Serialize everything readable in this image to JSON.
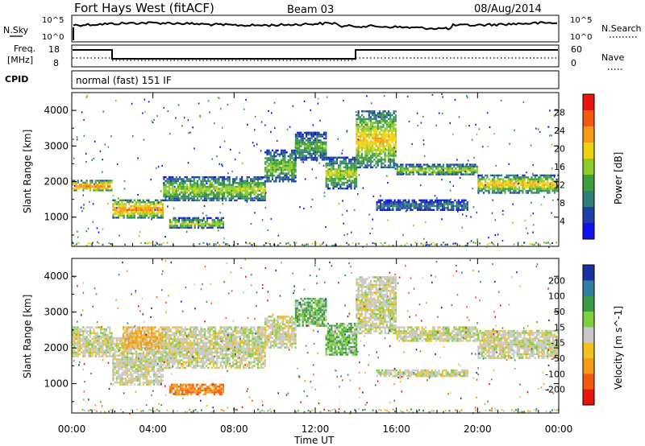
{
  "header": {
    "site": "Fort Hays West (fitACF)",
    "beam": "Beam 03",
    "date": "08/Aug/2014"
  },
  "strips": {
    "nsky_label": "N.Sky",
    "nsky_ticks": [
      "10^5",
      "10^0"
    ],
    "nsearch_label": "N.Search",
    "nsearch_ticks": [
      "10^5",
      "10^0"
    ],
    "freq_label": "Freq.",
    "freq_unit": "[MHz]",
    "freq_ticks": [
      "18",
      "8"
    ],
    "nave_label": "Nave",
    "nave_ticks": [
      "60",
      "0"
    ],
    "cpid_label": "CPID",
    "cpid_text": "normal (fast) 151 IF"
  },
  "chart_data": [
    {
      "type": "heatmap",
      "name": "power",
      "ylabel": "Slant Range [km]",
      "xlabel": "Time UT",
      "xlim_hours": [
        0,
        24
      ],
      "ylim": [
        180,
        4500
      ],
      "yticks": [
        "1000",
        "2000",
        "3000",
        "4000"
      ],
      "xticks": [
        "00:00",
        "04:00",
        "08:00",
        "12:00",
        "16:00",
        "20:00",
        "00:00"
      ],
      "colorbar": {
        "label": "Power [dB]",
        "ticks": [
          "28",
          "24",
          "20",
          "16",
          "12",
          "8",
          "4"
        ],
        "colors": [
          "#e8140e",
          "#f35a0f",
          "#f79a1a",
          "#efd20f",
          "#8ccc2a",
          "#3e9e3e",
          "#2f7f76",
          "#1f3fa8",
          "#1010f0"
        ]
      },
      "bands": [
        {
          "h": [
            0.0,
            2.0
          ],
          "r": [
            1750,
            2050
          ],
          "level": 22
        },
        {
          "h": [
            2.0,
            4.5
          ],
          "r": [
            1000,
            1500
          ],
          "level": 22
        },
        {
          "h": [
            4.5,
            9.5
          ],
          "r": [
            1450,
            2150
          ],
          "level": 14
        },
        {
          "h": [
            9.5,
            11.0
          ],
          "r": [
            2000,
            2900
          ],
          "level": 12
        },
        {
          "h": [
            11.0,
            12.5
          ],
          "r": [
            2600,
            3400
          ],
          "level": 11
        },
        {
          "h": [
            12.5,
            14.0
          ],
          "r": [
            1800,
            2700
          ],
          "level": 14
        },
        {
          "h": [
            14.0,
            16.0
          ],
          "r": [
            2400,
            4000
          ],
          "level": 18
        },
        {
          "h": [
            16.0,
            20.0
          ],
          "r": [
            2200,
            2500
          ],
          "level": 14
        },
        {
          "h": [
            20.0,
            24.0
          ],
          "r": [
            1700,
            2200
          ],
          "level": 18
        },
        {
          "h": [
            15.0,
            19.5
          ],
          "r": [
            1200,
            1500
          ],
          "level": 8
        },
        {
          "h": [
            4.8,
            7.5
          ],
          "r": [
            700,
            1000
          ],
          "level": 14
        }
      ]
    },
    {
      "type": "heatmap",
      "name": "velocity",
      "ylabel": "Slant Range [km]",
      "xlabel": "Time UT",
      "xlim_hours": [
        0,
        24
      ],
      "ylim": [
        180,
        4500
      ],
      "yticks": [
        "1000",
        "2000",
        "3000",
        "4000"
      ],
      "xticks": [
        "00:00",
        "04:00",
        "08:00",
        "12:00",
        "16:00",
        "20:00",
        "00:00"
      ],
      "colorbar": {
        "label": "Velocity [m s^-1]",
        "ticks": [
          "200",
          "100",
          "50",
          "15",
          "-15",
          "-50",
          "-100",
          "-200"
        ],
        "colors": [
          "#1a2fa0",
          "#2f7fa0",
          "#3a9a4a",
          "#7ecf3a",
          "#c8c8c8",
          "#f0c020",
          "#f39a1a",
          "#f35a0f",
          "#e8140e"
        ]
      },
      "bands": [
        {
          "h": [
            0.0,
            2.0
          ],
          "r": [
            1750,
            2600
          ],
          "vel": 0
        },
        {
          "h": [
            2.0,
            4.5
          ],
          "r": [
            1000,
            2300
          ],
          "vel": 0
        },
        {
          "h": [
            4.5,
            9.5
          ],
          "r": [
            1450,
            2600
          ],
          "vel": 0
        },
        {
          "h": [
            9.5,
            11.0
          ],
          "r": [
            2000,
            2900
          ],
          "vel": 0
        },
        {
          "h": [
            11.0,
            12.5
          ],
          "r": [
            2600,
            3400
          ],
          "vel": 30
        },
        {
          "h": [
            12.5,
            14.0
          ],
          "r": [
            1800,
            2700
          ],
          "vel": 30
        },
        {
          "h": [
            14.0,
            16.0
          ],
          "r": [
            2400,
            4000
          ],
          "vel": 0
        },
        {
          "h": [
            16.0,
            20.0
          ],
          "r": [
            2200,
            2600
          ],
          "vel": 0
        },
        {
          "h": [
            20.0,
            24.0
          ],
          "r": [
            1700,
            2500
          ],
          "vel": 0
        },
        {
          "h": [
            15.0,
            19.5
          ],
          "r": [
            1200,
            1400
          ],
          "vel": 0
        },
        {
          "h": [
            4.8,
            7.5
          ],
          "r": [
            700,
            1000
          ],
          "vel": -70
        },
        {
          "h": [
            2.5,
            4.5
          ],
          "r": [
            2000,
            2600
          ],
          "vel": -30
        }
      ]
    }
  ]
}
